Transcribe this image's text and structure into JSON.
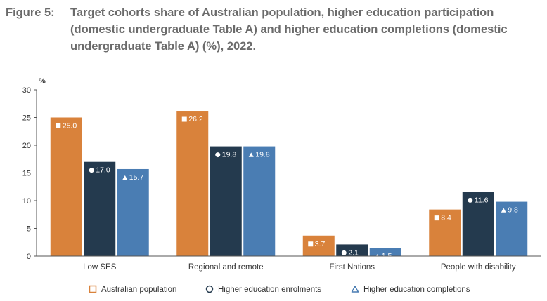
{
  "figure": {
    "number": "Figure 5:",
    "title": "Target cohorts share of Australian population, higher education participation (domestic undergraduate Table A) and higher education completions (domestic undergraduate Table A) (%), 2022."
  },
  "chart_data": {
    "type": "bar",
    "ylabel": "%",
    "ylim": [
      0,
      30
    ],
    "yticks": [
      0,
      5,
      10,
      15,
      20,
      25,
      30
    ],
    "categories": [
      "Low SES",
      "Regional and remote",
      "First Nations",
      "People with disability"
    ],
    "series": [
      {
        "name": "Australian population",
        "marker": "square",
        "color": "#D9823B",
        "values": [
          25.0,
          26.2,
          3.7,
          8.4
        ],
        "labels": [
          "25.0",
          "26.2",
          "3.7",
          "8.4"
        ]
      },
      {
        "name": "Higher education enrolments",
        "marker": "circle",
        "color": "#243A4E",
        "values": [
          17.0,
          19.8,
          2.1,
          11.6
        ],
        "labels": [
          "17.0",
          "19.8",
          "2.1",
          "11.6"
        ]
      },
      {
        "name": "Higher education completions",
        "marker": "triangle",
        "color": "#4A7DB3",
        "values": [
          15.7,
          19.8,
          1.5,
          9.8
        ],
        "labels": [
          "15.7",
          "19.8",
          "1.5",
          "9.8"
        ]
      }
    ],
    "grid": false,
    "legend_position": "bottom"
  }
}
